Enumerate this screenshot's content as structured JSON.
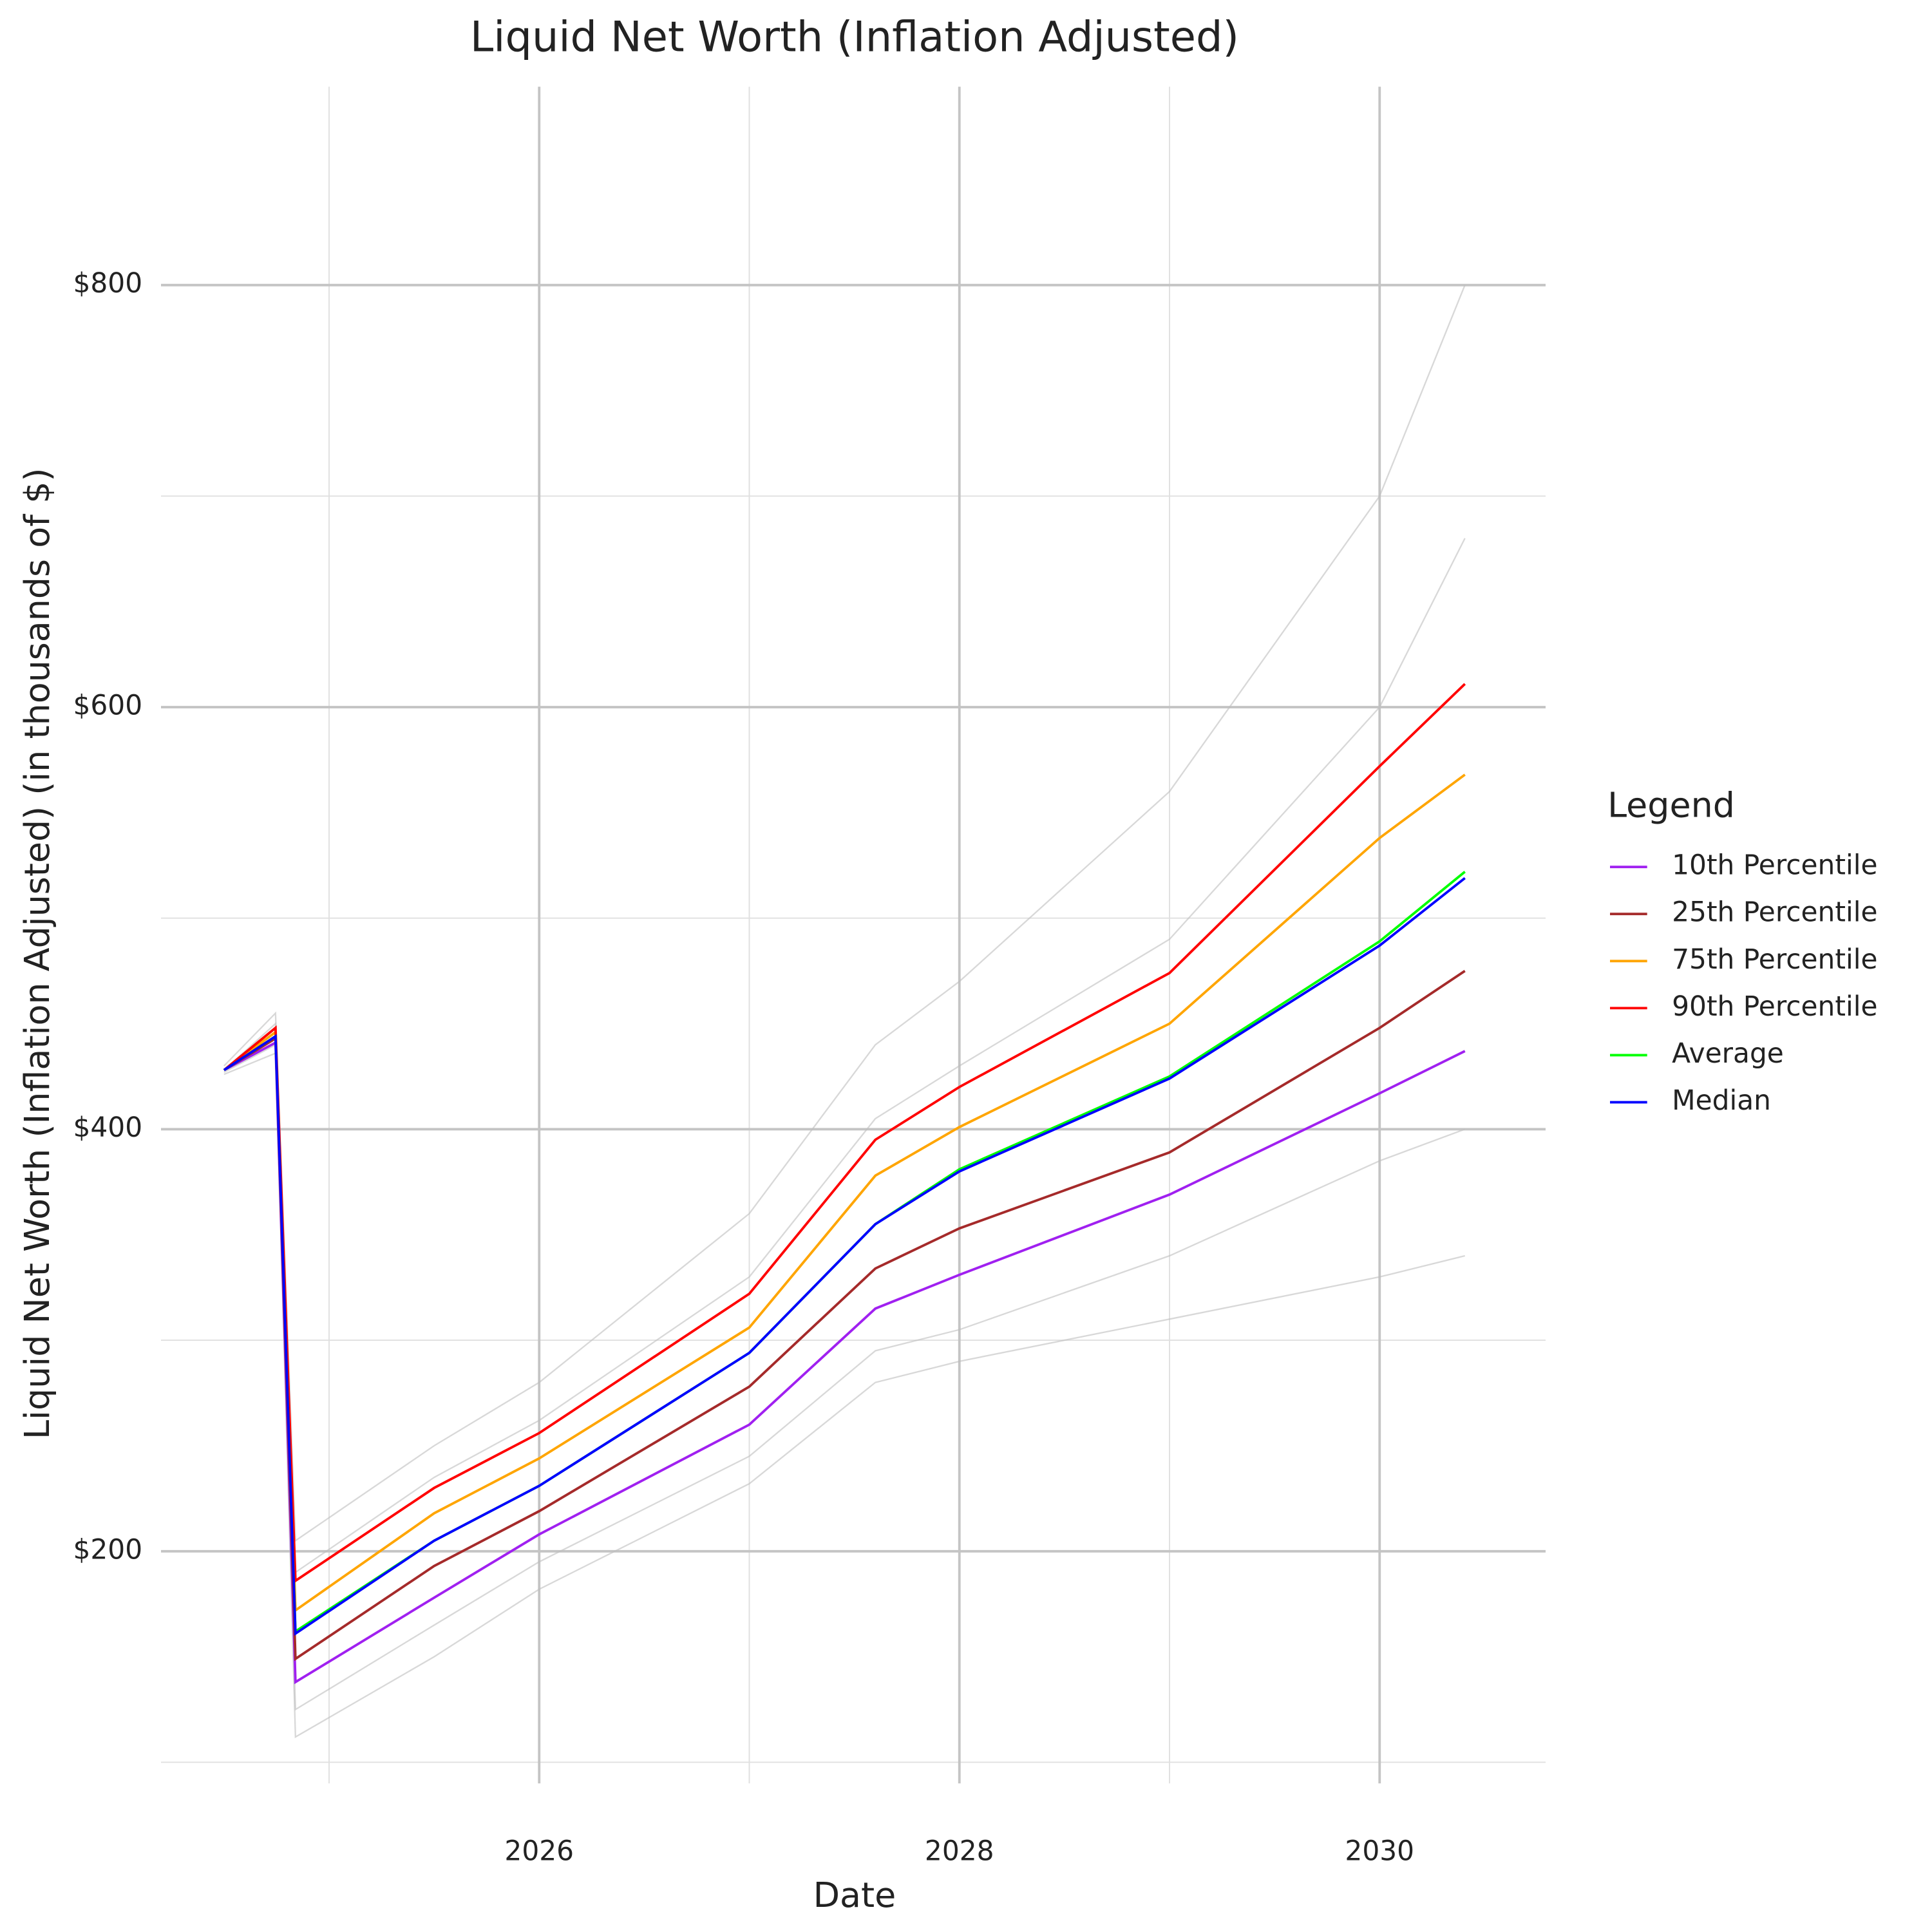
{
  "chart_data": {
    "type": "line",
    "title": "Liquid Net Worth (Inflation Adjusted)",
    "x_label": "Date",
    "y_label": "Liquid Net Worth (Inflation Adjusted) (in thousands of $)",
    "legend_title": "Legend",
    "legend": "right",
    "grid": true,
    "x": [
      2024.5,
      2024.745,
      2024.84,
      2025.5,
      2026,
      2027,
      2027.6,
      2028,
      2029,
      2030,
      2030.406
    ],
    "xlim": [
      2024.2,
      2030.79
    ],
    "xticks": [
      2026,
      2028,
      2030
    ],
    "ylim": [
      90,
      894
    ],
    "yticks": [
      {
        "value": 200,
        "label": "$200"
      },
      {
        "value": 400,
        "label": "$400"
      },
      {
        "value": 600,
        "label": "$600"
      },
      {
        "value": 800,
        "label": "$800"
      }
    ],
    "series": [
      {
        "color": "#bebebe",
        "values": [
          430,
          455,
          205,
          250,
          280,
          360,
          440,
          470,
          560,
          700,
          800
        ]
      },
      {
        "color": "#bebebe",
        "values": [
          428,
          450,
          190,
          235,
          262,
          330,
          405,
          430,
          490,
          600,
          680
        ]
      },
      {
        "color": "#bebebe",
        "values": [
          427,
          440,
          125,
          165,
          195,
          245,
          295,
          305,
          340,
          385,
          400
        ]
      },
      {
        "color": "#bebebe",
        "values": [
          426,
          436,
          112,
          150,
          182,
          232,
          280,
          290,
          310,
          330,
          340
        ]
      },
      {
        "name": "10th Percentile",
        "color": "#a020f0",
        "values": [
          428,
          441,
          138,
          178,
          208,
          260,
          315,
          331,
          369,
          417,
          437
        ]
      },
      {
        "name": "25th Percentile",
        "color": "#a52a2a",
        "values": [
          428,
          443,
          149,
          193,
          219,
          278,
          334,
          353,
          389,
          448,
          475
        ]
      },
      {
        "name": "75th Percentile",
        "color": "#ffa500",
        "values": [
          428,
          446,
          172,
          218,
          244,
          306,
          378,
          401,
          450,
          538,
          568
        ]
      },
      {
        "name": "90th Percentile",
        "color": "#ff0000",
        "values": [
          428,
          448,
          186,
          230,
          256,
          322,
          395,
          420,
          474,
          572,
          611
        ]
      },
      {
        "name": "Average",
        "color": "#00ff00",
        "values": [
          428,
          444,
          162,
          205,
          231,
          294,
          355,
          381,
          425,
          489,
          522
        ]
      },
      {
        "name": "Median",
        "color": "#0000ff",
        "values": [
          428,
          444,
          161,
          205,
          231,
          294,
          355,
          380,
          424,
          487,
          519
        ]
      }
    ]
  }
}
